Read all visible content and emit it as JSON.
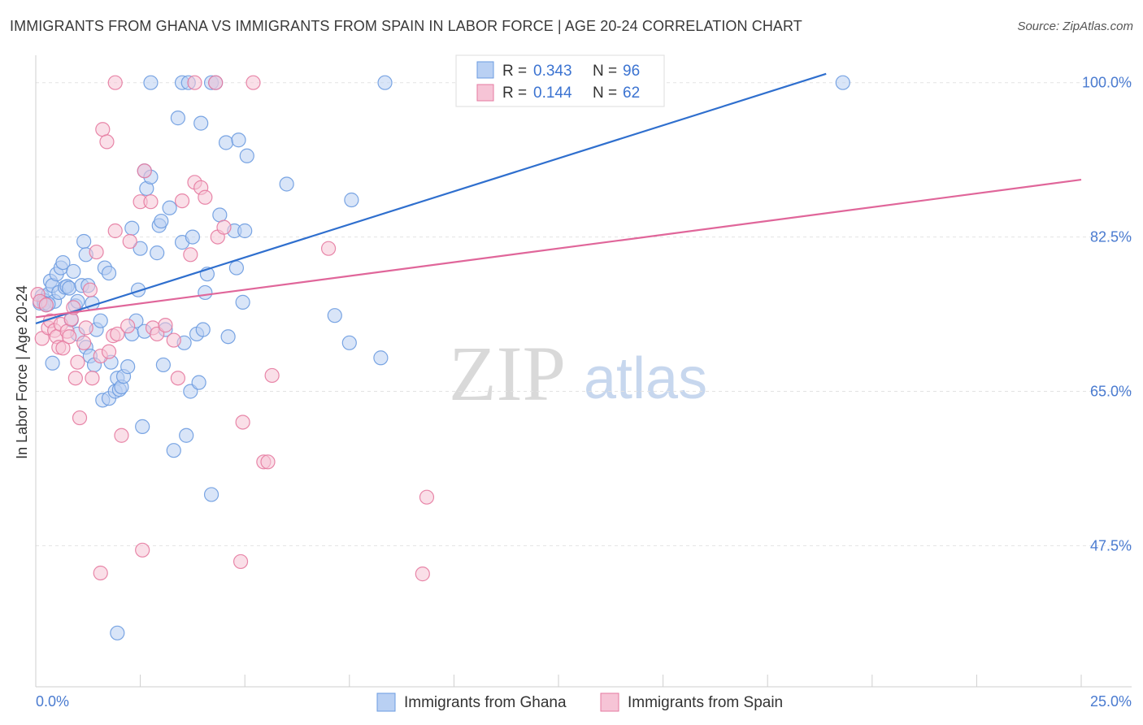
{
  "header": {
    "title": "IMMIGRANTS FROM GHANA VS IMMIGRANTS FROM SPAIN IN LABOR FORCE | AGE 20-24 CORRELATION CHART",
    "source": "Source: ZipAtlas.com"
  },
  "watermark": {
    "zip": "ZIP",
    "atlas": "atlas"
  },
  "legend": {
    "items": [
      {
        "r_label": "R =",
        "r_value": "0.343",
        "n_label": "N =",
        "n_value": "96",
        "color": "#6b9be0",
        "fill": "#b9d0f3"
      },
      {
        "r_label": "R =",
        "r_value": "0.144",
        "n_label": "N =",
        "n_value": "62",
        "color": "#e57aa0",
        "fill": "#f6c4d6"
      }
    ]
  },
  "bottom_legend": {
    "ghana": "Immigrants from Ghana",
    "spain": "Immigrants from Spain"
  },
  "chart_data": {
    "type": "scatter",
    "title": "IMMIGRANTS FROM GHANA VS IMMIGRANTS FROM SPAIN IN LABOR FORCE | AGE 20-24 CORRELATION CHART",
    "xlabel": "",
    "ylabel": "In Labor Force | Age 20-24",
    "xlim": [
      0,
      25
    ],
    "ylim": [
      31.5,
      102
    ],
    "x_tick_labels": [
      "0.0%",
      "25.0%"
    ],
    "y_ticks": [
      47.5,
      65.0,
      82.5,
      100.0
    ],
    "y_tick_labels": [
      "47.5%",
      "65.0%",
      "82.5%",
      "100.0%"
    ],
    "grid": true,
    "legend_position": "top-center",
    "series": [
      {
        "name": "Immigrants from Ghana",
        "color": "#6b9be0",
        "fill": "#b9d0f3",
        "trend": {
          "x": [
            0.0,
            18.9
          ],
          "y": [
            72.7,
            101.0
          ]
        },
        "points": [
          [
            0.1,
            75.0
          ],
          [
            0.15,
            75.8
          ],
          [
            0.2,
            75.3
          ],
          [
            0.25,
            74.8
          ],
          [
            0.3,
            76.0
          ],
          [
            0.35,
            77.5
          ],
          [
            0.4,
            77.0
          ],
          [
            0.45,
            75.2
          ],
          [
            0.5,
            78.3
          ],
          [
            0.55,
            76.2
          ],
          [
            0.6,
            79.0
          ],
          [
            0.65,
            79.6
          ],
          [
            0.7,
            76.8
          ],
          [
            0.75,
            76.9
          ],
          [
            0.8,
            76.7
          ],
          [
            0.85,
            73.1
          ],
          [
            0.9,
            78.6
          ],
          [
            0.95,
            74.7
          ],
          [
            1.0,
            75.2
          ],
          [
            1.1,
            77.0
          ],
          [
            1.15,
            82.0
          ],
          [
            1.2,
            80.5
          ],
          [
            1.25,
            77.0
          ],
          [
            1.35,
            75.0
          ],
          [
            1.45,
            72.0
          ],
          [
            1.55,
            73.0
          ],
          [
            1.65,
            79.0
          ],
          [
            1.75,
            78.4
          ],
          [
            1.2,
            70.0
          ],
          [
            1.0,
            71.5
          ],
          [
            0.4,
            68.2
          ],
          [
            1.3,
            69.0
          ],
          [
            1.4,
            68.0
          ],
          [
            1.6,
            64.0
          ],
          [
            1.75,
            64.2
          ],
          [
            1.8,
            68.3
          ],
          [
            1.9,
            65.0
          ],
          [
            1.95,
            66.5
          ],
          [
            2.0,
            65.2
          ],
          [
            2.05,
            65.5
          ],
          [
            2.1,
            66.7
          ],
          [
            2.2,
            67.8
          ],
          [
            2.4,
            73.0
          ],
          [
            2.3,
            71.5
          ],
          [
            2.3,
            83.5
          ],
          [
            2.45,
            76.5
          ],
          [
            2.5,
            81.2
          ],
          [
            2.55,
            61.0
          ],
          [
            2.6,
            90.0
          ],
          [
            2.6,
            71.8
          ],
          [
            2.65,
            88.0
          ],
          [
            2.75,
            89.3
          ],
          [
            2.9,
            80.7
          ],
          [
            2.95,
            83.8
          ],
          [
            3.0,
            84.3
          ],
          [
            3.05,
            68.0
          ],
          [
            3.1,
            72.0
          ],
          [
            3.2,
            85.8
          ],
          [
            3.3,
            58.3
          ],
          [
            3.4,
            96.0
          ],
          [
            3.5,
            81.9
          ],
          [
            3.55,
            70.5
          ],
          [
            3.6,
            60.0
          ],
          [
            3.7,
            65.0
          ],
          [
            3.75,
            82.5
          ],
          [
            3.85,
            71.5
          ],
          [
            3.9,
            66.0
          ],
          [
            3.95,
            95.4
          ],
          [
            4.0,
            72.0
          ],
          [
            4.05,
            76.2
          ],
          [
            4.1,
            78.3
          ],
          [
            4.2,
            53.3
          ],
          [
            4.4,
            85.0
          ],
          [
            4.55,
            93.2
          ],
          [
            4.6,
            71.2
          ],
          [
            4.75,
            83.2
          ],
          [
            4.8,
            79.0
          ],
          [
            4.85,
            93.5
          ],
          [
            4.95,
            75.1
          ],
          [
            5.05,
            91.7
          ],
          [
            5.0,
            83.2
          ],
          [
            6.0,
            88.5
          ],
          [
            7.15,
            73.6
          ],
          [
            7.5,
            70.5
          ],
          [
            7.55,
            86.7
          ],
          [
            8.25,
            68.8
          ],
          [
            1.95,
            37.6
          ],
          [
            2.75,
            100.0
          ],
          [
            3.5,
            100.0
          ],
          [
            3.65,
            100.0
          ],
          [
            4.2,
            100.0
          ],
          [
            4.3,
            100.0
          ],
          [
            8.35,
            100.0
          ],
          [
            19.3,
            100.0
          ],
          [
            0.2,
            75.0
          ],
          [
            0.3,
            74.9
          ]
        ]
      },
      {
        "name": "Immigrants from Spain",
        "color": "#e57aa0",
        "fill": "#f6c4d6",
        "trend": {
          "x": [
            0.0,
            25.0
          ],
          "y": [
            73.4,
            89.0
          ]
        },
        "points": [
          [
            0.05,
            76.0
          ],
          [
            0.1,
            75.2
          ],
          [
            0.15,
            71.0
          ],
          [
            0.25,
            74.8
          ],
          [
            0.3,
            72.2
          ],
          [
            0.35,
            73.0
          ],
          [
            0.45,
            71.9
          ],
          [
            0.5,
            71.2
          ],
          [
            0.55,
            70.0
          ],
          [
            0.6,
            72.6
          ],
          [
            0.65,
            69.9
          ],
          [
            0.75,
            71.8
          ],
          [
            0.8,
            71.2
          ],
          [
            0.85,
            73.2
          ],
          [
            0.9,
            74.5
          ],
          [
            0.95,
            66.5
          ],
          [
            1.0,
            68.3
          ],
          [
            1.05,
            62.0
          ],
          [
            1.15,
            70.5
          ],
          [
            1.2,
            72.2
          ],
          [
            1.3,
            76.5
          ],
          [
            1.35,
            66.5
          ],
          [
            1.45,
            80.8
          ],
          [
            1.55,
            69.0
          ],
          [
            1.6,
            94.7
          ],
          [
            1.7,
            93.3
          ],
          [
            1.75,
            69.5
          ],
          [
            1.85,
            71.3
          ],
          [
            1.9,
            83.2
          ],
          [
            1.95,
            71.5
          ],
          [
            2.05,
            60.0
          ],
          [
            2.2,
            72.4
          ],
          [
            2.25,
            82.0
          ],
          [
            2.5,
            86.5
          ],
          [
            2.55,
            47.0
          ],
          [
            2.6,
            90.0
          ],
          [
            2.75,
            86.5
          ],
          [
            2.8,
            72.2
          ],
          [
            2.9,
            71.5
          ],
          [
            3.1,
            72.5
          ],
          [
            3.3,
            70.8
          ],
          [
            3.4,
            66.5
          ],
          [
            3.5,
            86.6
          ],
          [
            3.7,
            80.5
          ],
          [
            3.8,
            88.7
          ],
          [
            3.95,
            88.1
          ],
          [
            4.05,
            87.0
          ],
          [
            4.35,
            82.5
          ],
          [
            4.5,
            83.6
          ],
          [
            4.9,
            45.7
          ],
          [
            4.95,
            61.5
          ],
          [
            5.45,
            57.0
          ],
          [
            5.55,
            57.0
          ],
          [
            5.65,
            66.8
          ],
          [
            7.0,
            81.2
          ],
          [
            9.35,
            53.0
          ],
          [
            9.25,
            44.3
          ],
          [
            1.55,
            44.4
          ],
          [
            1.9,
            100.0
          ],
          [
            3.8,
            100.0
          ],
          [
            4.3,
            100.0
          ],
          [
            5.2,
            100.0
          ]
        ]
      }
    ]
  }
}
